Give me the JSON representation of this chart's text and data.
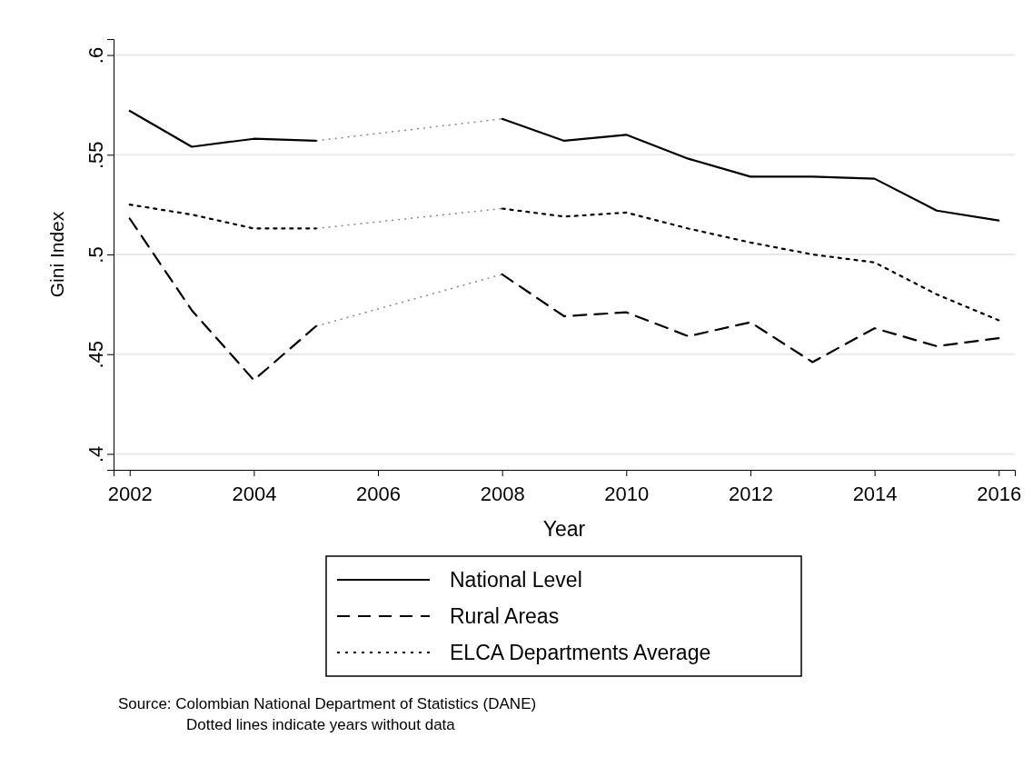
{
  "chart_data": {
    "type": "line",
    "xlabel": "Year",
    "ylabel": "Gini Index",
    "x": [
      2002,
      2003,
      2004,
      2005,
      2006,
      2007,
      2008,
      2009,
      2010,
      2011,
      2012,
      2013,
      2014,
      2015,
      2016
    ],
    "xlim": [
      2001.74,
      2016.26
    ],
    "xticks": [
      2002,
      2004,
      2006,
      2008,
      2010,
      2012,
      2014,
      2016
    ],
    "ylim": [
      0.392,
      0.608
    ],
    "yticks": [
      {
        "value": 0.4,
        "label": ".4"
      },
      {
        "value": 0.45,
        "label": ".45"
      },
      {
        "value": 0.5,
        "label": ".5"
      },
      {
        "value": 0.55,
        "label": ".55"
      },
      {
        "value": 0.6,
        "label": ".6"
      }
    ],
    "grid": "y",
    "legend": "bottom",
    "marker": "none",
    "series": [
      {
        "name": "National Level",
        "color": "#000000",
        "line_style": "solid",
        "values": [
          0.572,
          0.554,
          0.558,
          0.557,
          null,
          null,
          0.568,
          0.557,
          0.56,
          0.548,
          0.539,
          0.539,
          0.538,
          0.522,
          0.517
        ]
      },
      {
        "name": "Rural Areas",
        "color": "#000000",
        "line_style": "dashed",
        "values": [
          0.518,
          0.472,
          0.437,
          0.464,
          null,
          null,
          0.49,
          0.469,
          0.471,
          0.459,
          0.466,
          0.446,
          0.463,
          0.454,
          0.458
        ]
      },
      {
        "name": "ELCA Departments Average",
        "color": "#000000",
        "line_style": "dotted",
        "values": [
          0.525,
          0.52,
          0.513,
          0.513,
          null,
          null,
          0.523,
          0.519,
          0.521,
          0.513,
          0.506,
          0.5,
          0.496,
          0.48,
          0.467
        ]
      }
    ],
    "annotations": [
      "Source: Colombian National Department of Statistics (DANE)",
      "Dotted lines indicate years without data"
    ]
  }
}
